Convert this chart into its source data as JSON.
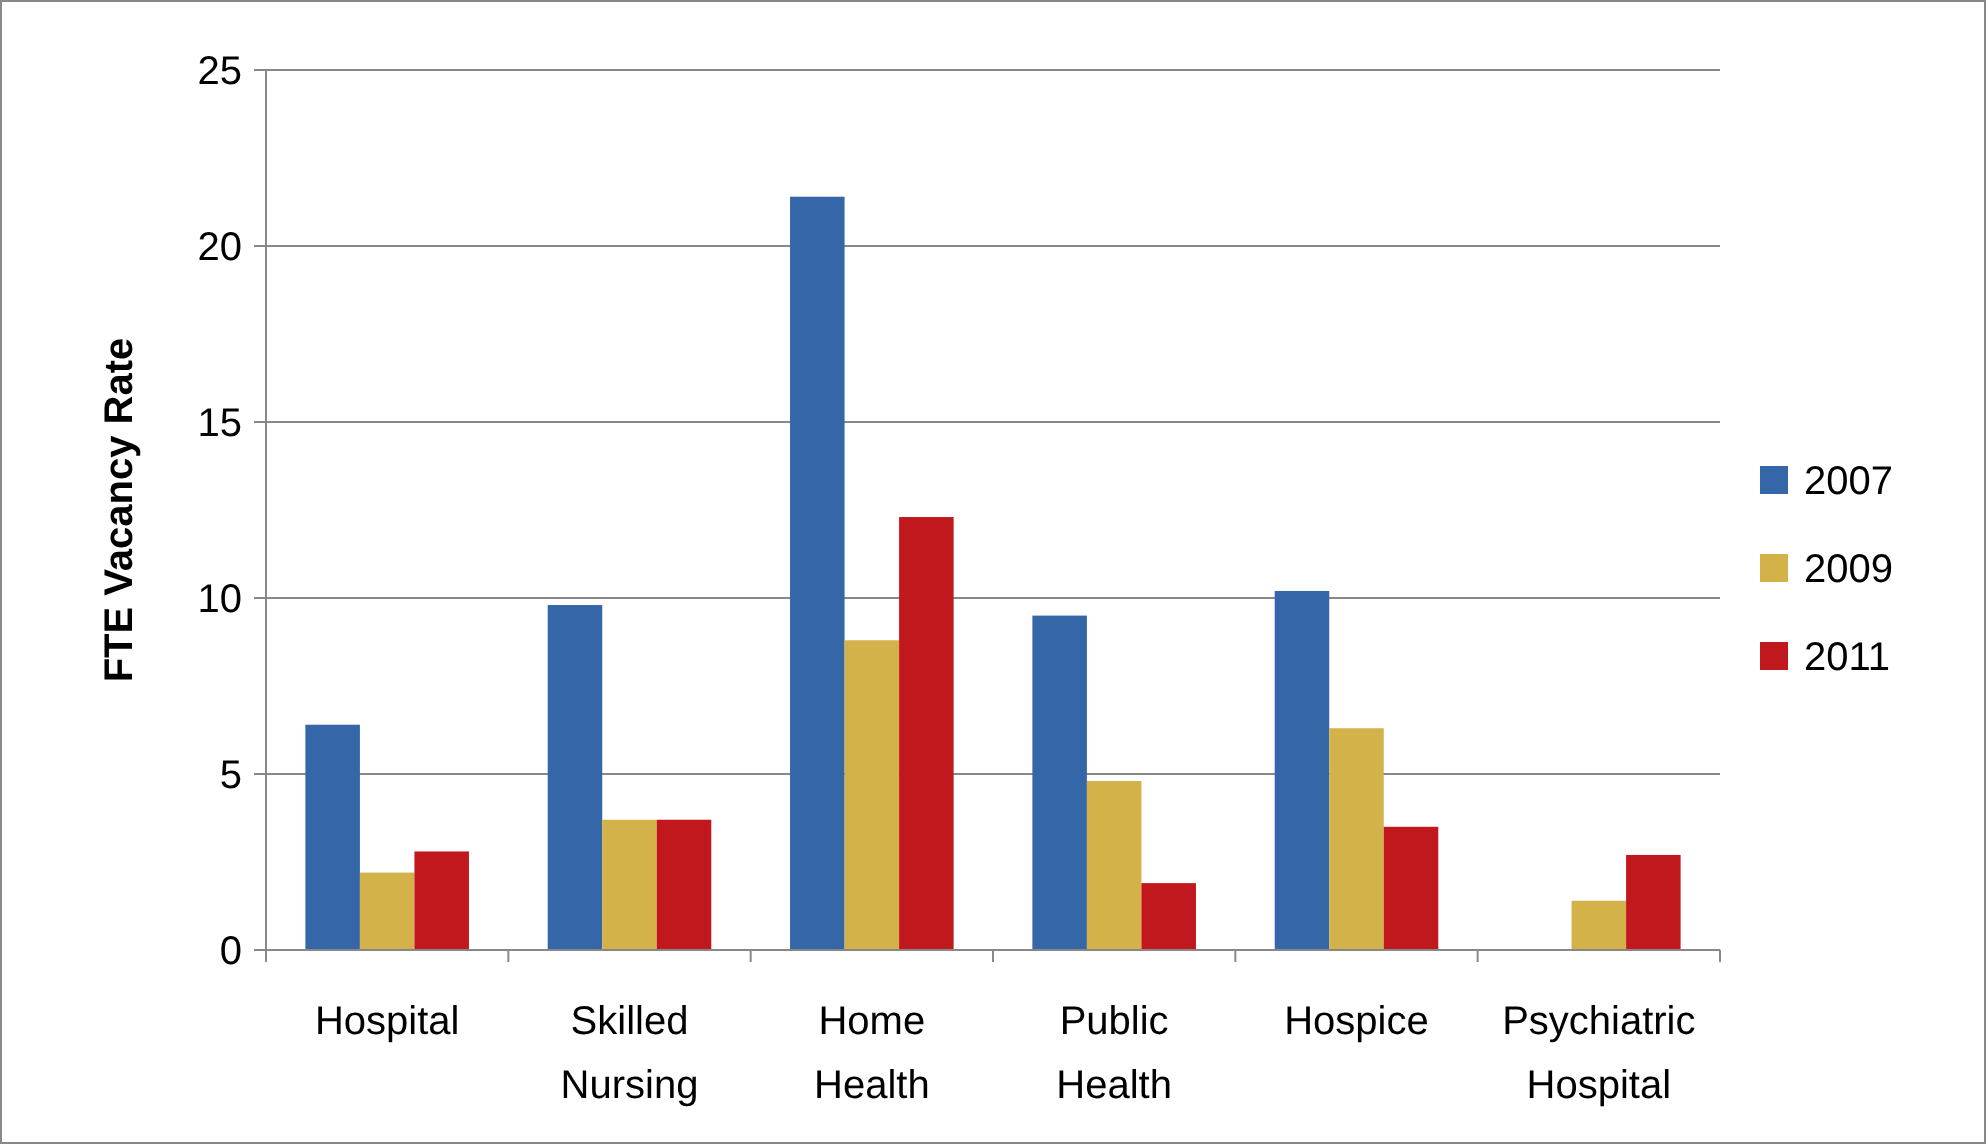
{
  "chart_data": {
    "type": "bar",
    "ylabel": "FTE Vacancy Rate",
    "categories": [
      "Hospital",
      "Skilled Nursing",
      "Home Health",
      "Public Health",
      "Hospice",
      "Psychiatric Hospital"
    ],
    "series": [
      {
        "name": "2007",
        "color": "#3466a8",
        "values": [
          6.4,
          9.8,
          21.4,
          9.5,
          10.2,
          null
        ]
      },
      {
        "name": "2009",
        "color": "#d4b24a",
        "values": [
          2.2,
          3.7,
          8.8,
          4.8,
          6.3,
          1.4
        ]
      },
      {
        "name": "2011",
        "color": "#c0181d",
        "values": [
          2.8,
          3.7,
          12.3,
          1.9,
          3.5,
          2.7
        ]
      }
    ],
    "ylim": [
      0,
      25
    ],
    "yticks": [
      0,
      5,
      10,
      15,
      20,
      25
    ],
    "grid": "y",
    "legend": "right"
  }
}
